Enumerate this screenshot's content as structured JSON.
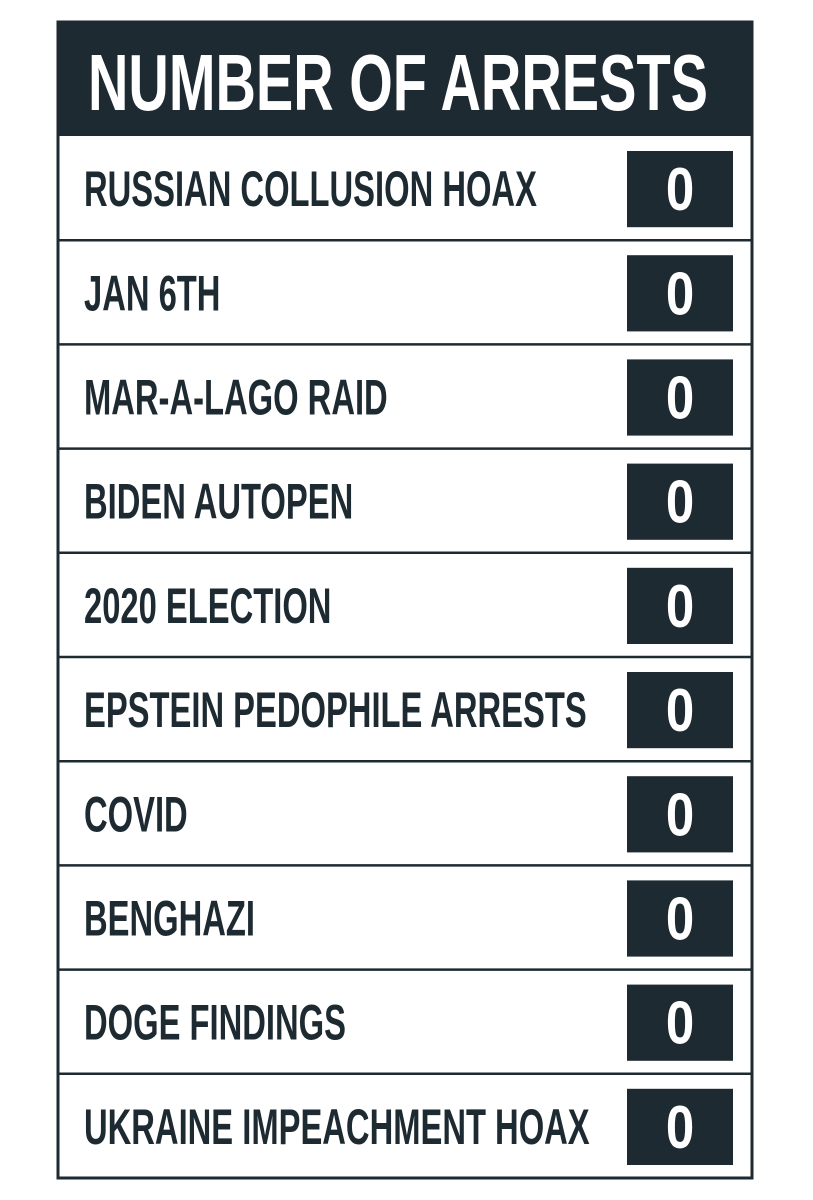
{
  "header": {
    "title": "NUMBER OF ARRESTS"
  },
  "table": {
    "rows": [
      [
        "RUSSIAN COLLUSION HOAX",
        0
      ],
      [
        "JAN 6TH",
        0
      ],
      [
        "MAR-A-LAGO RAID",
        0
      ],
      [
        "BIDEN AUTOPEN",
        0
      ],
      [
        "2020 ELECTION",
        0
      ],
      [
        "EPSTEIN PEDOPHILE ARRESTS",
        0
      ],
      [
        "COVID",
        0
      ],
      [
        "BENGHAZI",
        0
      ],
      [
        "DOGE FINDINGS",
        0
      ],
      [
        "UKRAINE IMPEACHMENT HOAX",
        0
      ]
    ]
  }
}
